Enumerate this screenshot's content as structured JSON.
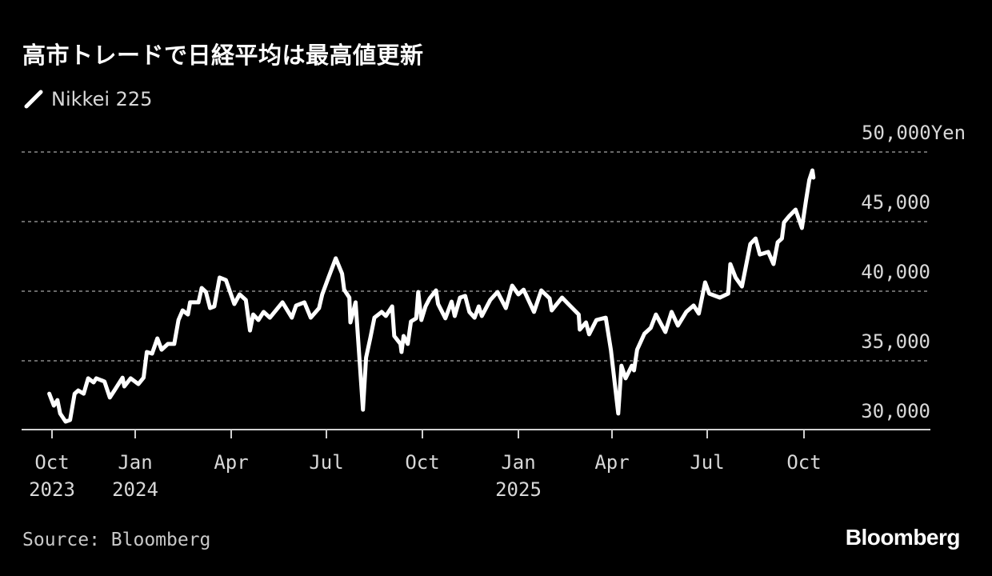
{
  "title": "高市トレードで日経平均は最高値更新",
  "legend": {
    "label": "Nikkei 225",
    "icon": "line-swatch-icon"
  },
  "source": "Source: Bloomberg",
  "logo": "Bloomberg",
  "colors": {
    "background": "#000000",
    "line": "#ffffff",
    "grid": "#8a8a8a",
    "text": "#d8d8d8"
  },
  "chart_data": {
    "type": "line",
    "title": "高市トレードで日経平均は最高値更新",
    "y_unit": "Yen",
    "ylim": [
      30000,
      50000
    ],
    "grid": true,
    "legend_position": "top-left",
    "y_axis_side": "right",
    "y_ticks": [
      {
        "value": 30000,
        "label": "30,000"
      },
      {
        "value": 35000,
        "label": "35,000"
      },
      {
        "value": 40000,
        "label": "40,000"
      },
      {
        "value": 45000,
        "label": "45,000"
      },
      {
        "value": 50000,
        "label": "50,000"
      }
    ],
    "x_ticks": [
      {
        "date": "2023-10-01",
        "label": "Oct",
        "year": "2023"
      },
      {
        "date": "2024-01-01",
        "label": "Jan",
        "year": "2024"
      },
      {
        "date": "2024-04-01",
        "label": "Apr",
        "year": ""
      },
      {
        "date": "2024-07-01",
        "label": "Jul",
        "year": ""
      },
      {
        "date": "2024-10-01",
        "label": "Oct",
        "year": ""
      },
      {
        "date": "2025-01-01",
        "label": "Jan",
        "year": "2025"
      },
      {
        "date": "2025-04-01",
        "label": "Apr",
        "year": ""
      },
      {
        "date": "2025-07-01",
        "label": "Jul",
        "year": ""
      },
      {
        "date": "2025-10-01",
        "label": "Oct",
        "year": ""
      }
    ],
    "series": [
      {
        "name": "Nikkei 225",
        "points": [
          [
            "2023-09-28",
            32640
          ],
          [
            "2023-10-03",
            31780
          ],
          [
            "2023-10-07",
            32180
          ],
          [
            "2023-10-10",
            31210
          ],
          [
            "2023-10-16",
            30630
          ],
          [
            "2023-10-21",
            30750
          ],
          [
            "2023-10-26",
            32640
          ],
          [
            "2023-10-30",
            32870
          ],
          [
            "2023-11-05",
            32640
          ],
          [
            "2023-11-10",
            33740
          ],
          [
            "2023-11-16",
            33450
          ],
          [
            "2023-11-19",
            33740
          ],
          [
            "2023-11-28",
            33510
          ],
          [
            "2023-12-04",
            32360
          ],
          [
            "2023-12-09",
            32870
          ],
          [
            "2023-12-18",
            33790
          ],
          [
            "2023-12-20",
            33160
          ],
          [
            "2023-12-27",
            33740
          ],
          [
            "2024-01-04",
            33330
          ],
          [
            "2024-01-09",
            33790
          ],
          [
            "2024-01-12",
            35630
          ],
          [
            "2024-01-17",
            35520
          ],
          [
            "2024-01-22",
            36610
          ],
          [
            "2024-01-26",
            35800
          ],
          [
            "2024-02-01",
            36210
          ],
          [
            "2024-02-07",
            36210
          ],
          [
            "2024-02-11",
            37930
          ],
          [
            "2024-02-15",
            38620
          ],
          [
            "2024-02-20",
            38330
          ],
          [
            "2024-02-22",
            39200
          ],
          [
            "2024-03-01",
            39200
          ],
          [
            "2024-03-04",
            40230
          ],
          [
            "2024-03-08",
            39940
          ],
          [
            "2024-03-12",
            38790
          ],
          [
            "2024-03-16",
            38910
          ],
          [
            "2024-03-21",
            40980
          ],
          [
            "2024-03-27",
            40800
          ],
          [
            "2024-04-04",
            39080
          ],
          [
            "2024-04-09",
            39770
          ],
          [
            "2024-04-15",
            39370
          ],
          [
            "2024-04-19",
            37180
          ],
          [
            "2024-04-22",
            38330
          ],
          [
            "2024-04-27",
            37930
          ],
          [
            "2024-05-02",
            38510
          ],
          [
            "2024-05-08",
            38100
          ],
          [
            "2024-05-20",
            39200
          ],
          [
            "2024-05-29",
            38100
          ],
          [
            "2024-06-02",
            38970
          ],
          [
            "2024-06-10",
            39200
          ],
          [
            "2024-06-16",
            38100
          ],
          [
            "2024-06-24",
            38790
          ],
          [
            "2024-06-27",
            39770
          ],
          [
            "2024-07-03",
            40980
          ],
          [
            "2024-07-10",
            42360
          ],
          [
            "2024-07-16",
            41260
          ],
          [
            "2024-07-18",
            40110
          ],
          [
            "2024-07-23",
            39540
          ],
          [
            "2024-07-24",
            37760
          ],
          [
            "2024-07-29",
            39200
          ],
          [
            "2024-08-05",
            31490
          ],
          [
            "2024-08-08",
            35230
          ],
          [
            "2024-08-12",
            36610
          ],
          [
            "2024-08-16",
            38100
          ],
          [
            "2024-08-23",
            38510
          ],
          [
            "2024-08-27",
            38220
          ],
          [
            "2024-09-02",
            38910
          ],
          [
            "2024-09-04",
            36780
          ],
          [
            "2024-09-10",
            36210
          ],
          [
            "2024-09-11",
            35630
          ],
          [
            "2024-09-13",
            36780
          ],
          [
            "2024-09-17",
            36210
          ],
          [
            "2024-09-20",
            37820
          ],
          [
            "2024-09-25",
            38050
          ],
          [
            "2024-09-27",
            39940
          ],
          [
            "2024-09-30",
            37930
          ],
          [
            "2024-10-04",
            38910
          ],
          [
            "2024-10-08",
            39480
          ],
          [
            "2024-10-14",
            40060
          ],
          [
            "2024-10-16",
            39080
          ],
          [
            "2024-10-23",
            38050
          ],
          [
            "2024-10-29",
            39250
          ],
          [
            "2024-11-01",
            38220
          ],
          [
            "2024-11-06",
            39540
          ],
          [
            "2024-11-11",
            39660
          ],
          [
            "2024-11-15",
            38510
          ],
          [
            "2024-11-20",
            38100
          ],
          [
            "2024-11-24",
            38910
          ],
          [
            "2024-11-27",
            38220
          ],
          [
            "2024-12-05",
            39370
          ],
          [
            "2024-12-12",
            39940
          ],
          [
            "2024-12-20",
            38790
          ],
          [
            "2024-12-26",
            40400
          ],
          [
            "2025-01-01",
            39770
          ],
          [
            "2025-01-06",
            40110
          ],
          [
            "2025-01-16",
            38510
          ],
          [
            "2025-01-23",
            40060
          ],
          [
            "2025-01-31",
            39480
          ],
          [
            "2025-02-02",
            38620
          ],
          [
            "2025-02-12",
            39540
          ],
          [
            "2025-02-18",
            39080
          ],
          [
            "2025-02-28",
            38330
          ],
          [
            "2025-03-01",
            37240
          ],
          [
            "2025-03-07",
            37760
          ],
          [
            "2025-03-10",
            36900
          ],
          [
            "2025-03-17",
            37930
          ],
          [
            "2025-03-26",
            38100
          ],
          [
            "2025-03-31",
            35750
          ],
          [
            "2025-04-07",
            31210
          ],
          [
            "2025-04-10",
            34650
          ],
          [
            "2025-04-14",
            33740
          ],
          [
            "2025-04-20",
            34650
          ],
          [
            "2025-04-22",
            34310
          ],
          [
            "2025-04-25",
            35800
          ],
          [
            "2025-05-02",
            36950
          ],
          [
            "2025-05-08",
            37360
          ],
          [
            "2025-05-13",
            38330
          ],
          [
            "2025-05-22",
            37070
          ],
          [
            "2025-05-28",
            38510
          ],
          [
            "2025-06-03",
            37530
          ],
          [
            "2025-06-11",
            38510
          ],
          [
            "2025-06-18",
            38970
          ],
          [
            "2025-06-23",
            38390
          ],
          [
            "2025-06-29",
            40630
          ],
          [
            "2025-07-03",
            39830
          ],
          [
            "2025-07-13",
            39540
          ],
          [
            "2025-07-21",
            39830
          ],
          [
            "2025-07-23",
            41950
          ],
          [
            "2025-07-28",
            40980
          ],
          [
            "2025-08-03",
            40340
          ],
          [
            "2025-08-11",
            43390
          ],
          [
            "2025-08-16",
            43790
          ],
          [
            "2025-08-20",
            42640
          ],
          [
            "2025-08-28",
            42820
          ],
          [
            "2025-09-02",
            41950
          ],
          [
            "2025-09-06",
            43510
          ],
          [
            "2025-09-10",
            43790
          ],
          [
            "2025-09-12",
            44940
          ],
          [
            "2025-09-17",
            45400
          ],
          [
            "2025-09-23",
            45860
          ],
          [
            "2025-09-29",
            44540
          ],
          [
            "2025-10-03",
            46550
          ],
          [
            "2025-10-06",
            47990
          ],
          [
            "2025-10-09",
            48680
          ],
          [
            "2025-10-10",
            48160
          ]
        ]
      }
    ]
  }
}
